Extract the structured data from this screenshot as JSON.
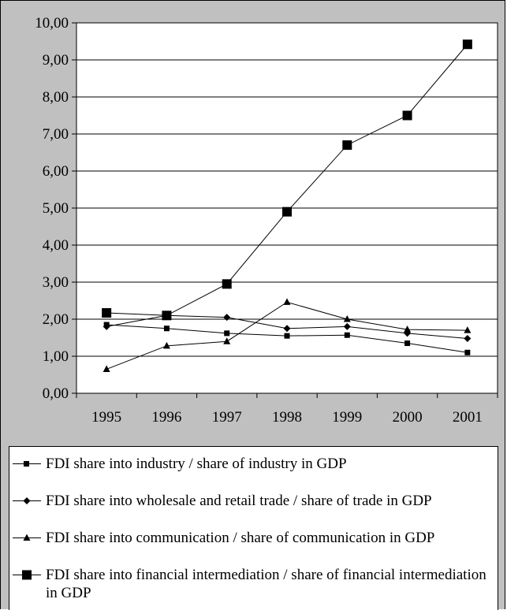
{
  "chart_data": {
    "type": "line",
    "categories": [
      "1995",
      "1996",
      "1997",
      "1998",
      "1999",
      "2000",
      "2001"
    ],
    "y_ticks": [
      "0,00",
      "1,00",
      "2,00",
      "3,00",
      "4,00",
      "5,00",
      "6,00",
      "7,00",
      "8,00",
      "9,00",
      "10,00"
    ],
    "ylim": [
      0,
      10
    ],
    "grid": "horizontal",
    "legend_position": "bottom",
    "series": [
      {
        "name": "FDI share into industry / share of industry in GDP",
        "marker": "square-small",
        "values": [
          1.85,
          1.75,
          1.62,
          1.55,
          1.57,
          1.35,
          1.1
        ]
      },
      {
        "name": "FDI share into wholesale and retail trade / share of trade in GDP",
        "marker": "diamond",
        "values": [
          1.8,
          2.1,
          2.05,
          1.75,
          1.8,
          1.62,
          1.48
        ]
      },
      {
        "name": "FDI share into communication / share of communication in GDP",
        "marker": "triangle",
        "values": [
          0.65,
          1.28,
          1.4,
          2.46,
          2.0,
          1.72,
          1.7
        ]
      },
      {
        "name": "FDI share into financial intermediation / share of financial intermediation in GDP",
        "marker": "square-large",
        "values": [
          2.17,
          2.1,
          2.95,
          4.9,
          6.7,
          7.5,
          9.42
        ]
      }
    ]
  }
}
